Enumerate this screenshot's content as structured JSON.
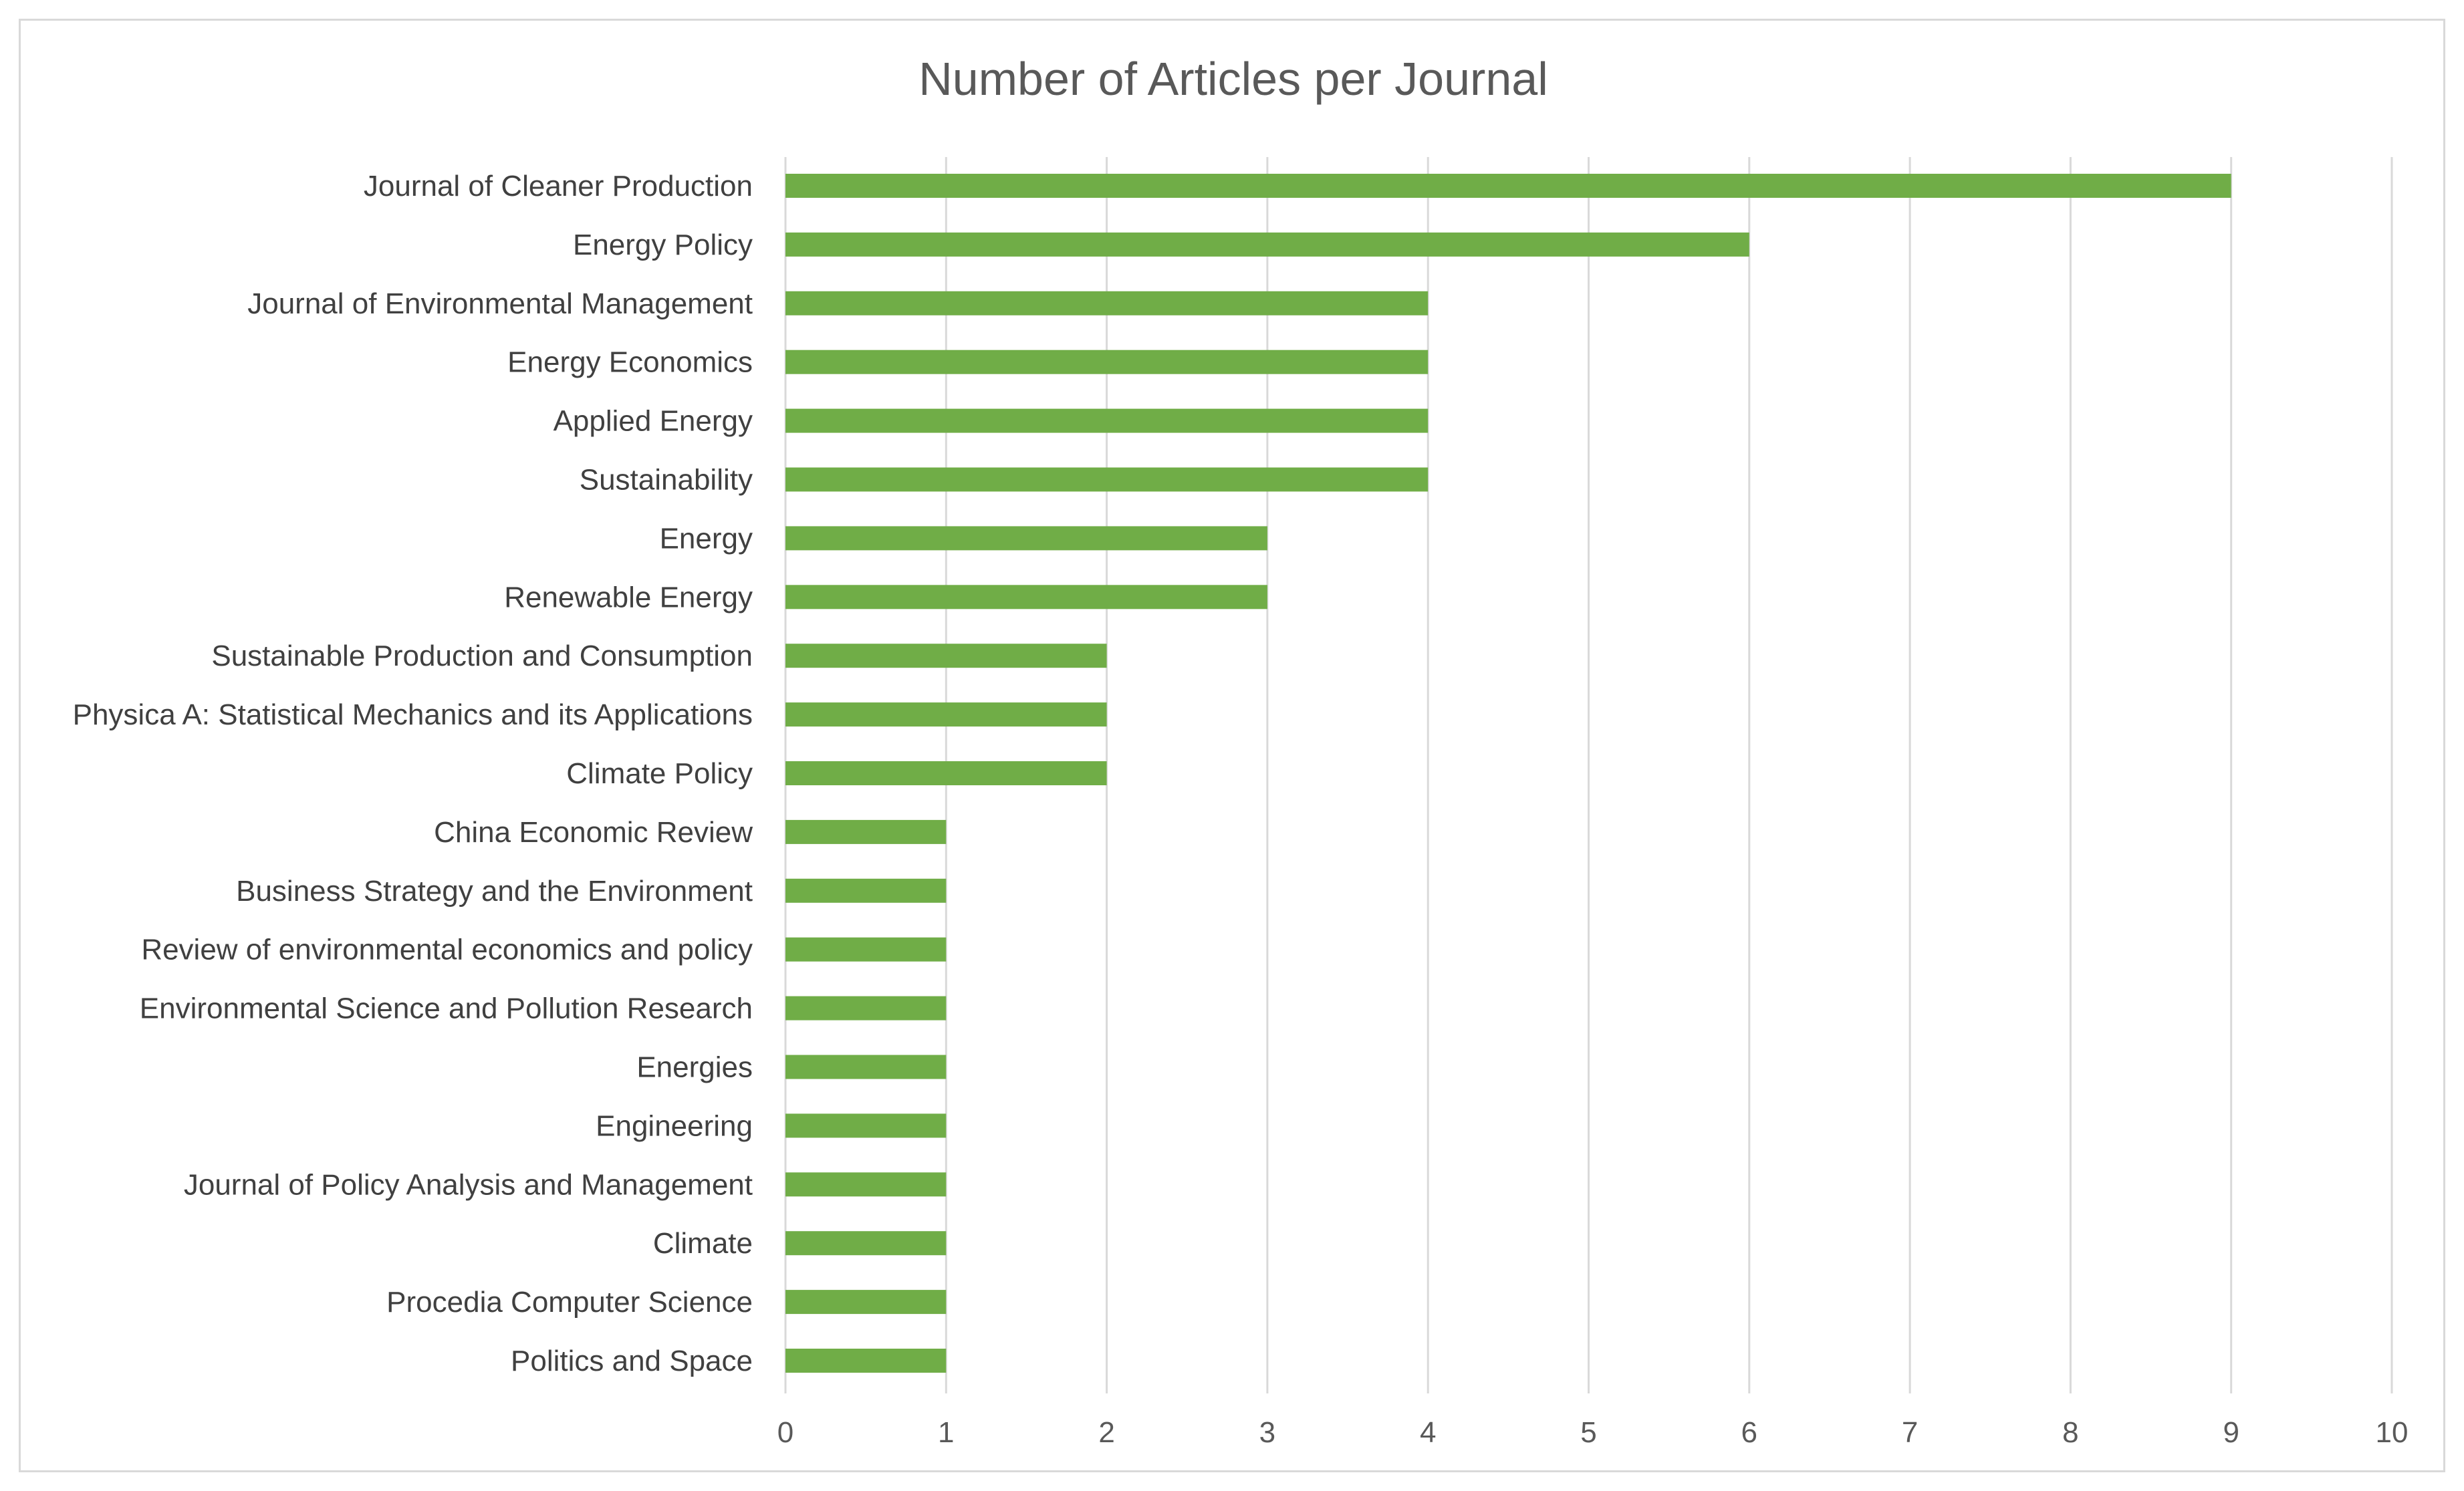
{
  "chart_data": {
    "type": "bar",
    "orientation": "horizontal",
    "title": "Number of Articles per Journal",
    "xlabel": "",
    "ylabel": "",
    "xlim": [
      0,
      10
    ],
    "ticks": [
      0,
      1,
      2,
      3,
      4,
      5,
      6,
      7,
      8,
      9,
      10
    ],
    "grid": true,
    "legend": "none",
    "bar_color": "#70AD47",
    "categories": [
      "Journal of Cleaner Production",
      "Energy Policy",
      "Journal of Environmental Management",
      "Energy Economics",
      "Applied Energy",
      "Sustainability",
      "Energy",
      "Renewable Energy",
      "Sustainable Production and Consumption",
      "Physica A: Statistical Mechanics and its Applications",
      "Climate Policy",
      "China Economic Review",
      "Business Strategy and the Environment",
      "Review of environmental economics and policy",
      "Environmental Science and Pollution Research",
      "Energies",
      "Engineering",
      "Journal of Policy Analysis and Management",
      "Climate",
      "Procedia Computer Science",
      "Politics and Space"
    ],
    "values": [
      9,
      6,
      4,
      4,
      4,
      4,
      3,
      3,
      2,
      2,
      2,
      1,
      1,
      1,
      1,
      1,
      1,
      1,
      1,
      1,
      1
    ]
  }
}
